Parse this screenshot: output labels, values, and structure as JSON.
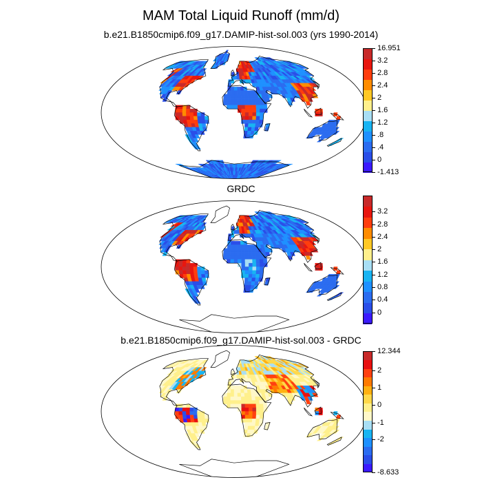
{
  "title": "MAM Total Liquid Runoff (mm/d)",
  "panels": [
    {
      "subtitle": "b.e21.B1850cmip6.f09_g17.DAMIP-hist-sol.003 (yrs 1990-2014)",
      "field": "model",
      "colorbar": {
        "colors": [
          "#3b1aff",
          "#2a4ee8",
          "#2b6cf0",
          "#1e90ff",
          "#18b4f2",
          "#a8def4",
          "#fff08c",
          "#ffc824",
          "#ff8c00",
          "#ff3d0d",
          "#e8160f",
          "#c82a2a"
        ],
        "labels": [
          "16.951",
          "3.2",
          "2.8",
          "2.4",
          "2",
          "1.6",
          "1.2",
          ".8",
          ".4",
          "0",
          "-1.413"
        ]
      }
    },
    {
      "subtitle": "GRDC",
      "field": "obs",
      "colorbar": {
        "colors": [
          "#3b1aff",
          "#2a4ee8",
          "#2b6cf0",
          "#1e90ff",
          "#18b4f2",
          "#a8def4",
          "#fff08c",
          "#ffc824",
          "#ff8c00",
          "#ff3d0d",
          "#e8160f",
          "#c82a2a"
        ],
        "labels": [
          "3.2",
          "2.8",
          "2.4",
          "2",
          "1.6",
          "1.2",
          "0.8",
          "0.4",
          "0"
        ]
      }
    },
    {
      "subtitle": "b.e21.B1850cmip6.f09_g17.DAMIP-hist-sol.003 - GRDC",
      "field": "diff",
      "colorbar": {
        "colors": [
          "#3b1aff",
          "#2a4ee8",
          "#2b6cf0",
          "#1e90ff",
          "#18b4f2",
          "#a8def4",
          "#fff8c8",
          "#fff08c",
          "#ffd84a",
          "#ffb010",
          "#ff7a00",
          "#ff4010",
          "#e81010",
          "#c82a2a"
        ],
        "labels": [
          "12.344",
          "2",
          "1",
          "0",
          "-1",
          "-2",
          "-8.633"
        ]
      }
    }
  ]
}
